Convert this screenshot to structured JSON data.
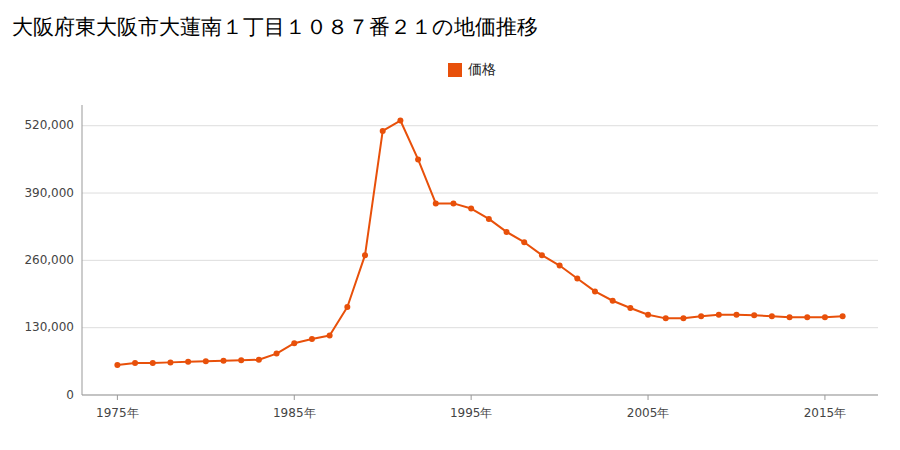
{
  "chart_data": {
    "type": "line",
    "title": "大阪府東大阪市大蓮南１丁目１０８７番２１の地価推移",
    "x": [
      1975,
      1976,
      1977,
      1978,
      1979,
      1980,
      1981,
      1982,
      1983,
      1984,
      1985,
      1986,
      1987,
      1988,
      1989,
      1990,
      1991,
      1992,
      1993,
      1994,
      1995,
      1996,
      1997,
      1998,
      1999,
      2000,
      2001,
      2002,
      2003,
      2004,
      2005,
      2006,
      2007,
      2008,
      2009,
      2010,
      2011,
      2012,
      2013,
      2014,
      2015,
      2016
    ],
    "series": [
      {
        "name": "価格",
        "color": "#e8500a",
        "marker": "circle",
        "values": [
          58000,
          62000,
          62000,
          63000,
          64000,
          65000,
          66000,
          67000,
          68000,
          80000,
          100000,
          108000,
          115000,
          170000,
          270000,
          510000,
          530000,
          455000,
          370000,
          370000,
          360000,
          340000,
          315000,
          295000,
          270000,
          250000,
          225000,
          200000,
          182000,
          168000,
          155000,
          148000,
          148000,
          152000,
          155000,
          155000,
          154000,
          152000,
          150000,
          150000,
          150000,
          152000
        ]
      }
    ],
    "xlim": [
      1973,
      2018
    ],
    "xticks": [
      {
        "value": 1975,
        "label": "1975年"
      },
      {
        "value": 1985,
        "label": "1985年"
      },
      {
        "value": 1995,
        "label": "1995年"
      },
      {
        "value": 2005,
        "label": "2005年"
      },
      {
        "value": 2015,
        "label": "2015年"
      }
    ],
    "ylim": [
      0,
      560000
    ],
    "yticks": [
      0,
      {
        "value": 130000,
        "label": "130,000"
      },
      {
        "value": 260000,
        "label": "260,000"
      },
      {
        "value": 390000,
        "label": "390,000"
      },
      {
        "value": 520000,
        "label": "520,000"
      }
    ],
    "grid": true,
    "legend": "top"
  }
}
